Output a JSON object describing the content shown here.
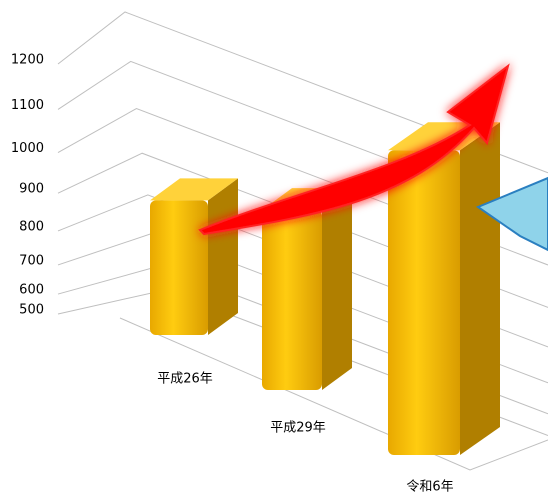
{
  "chart_data": {
    "type": "bar3d",
    "categories": [
      "平成26年",
      "平成29年",
      "令和6年"
    ],
    "values": [
      800,
      850,
      1000
    ],
    "color": "#f5b800",
    "ylim": [
      500,
      1200
    ],
    "yticks": [
      500,
      600,
      700,
      800,
      900,
      1000,
      1100,
      1200
    ],
    "grid": true
  }
}
